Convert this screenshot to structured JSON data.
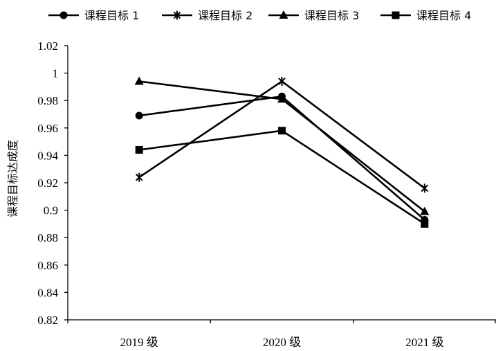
{
  "chart_data": {
    "type": "line",
    "categories": [
      "2019 级",
      "2020 级",
      "2021 级"
    ],
    "ylabel": "课程目标达成度",
    "xlabel": "",
    "ylim": [
      0.82,
      1.02
    ],
    "ytick_labels": [
      "0.82",
      "0.84",
      "0.86",
      "0.88",
      "0.9",
      "0.92",
      "0.94",
      "0.96",
      "0.98",
      "1",
      "1.02"
    ],
    "legend_position": "top",
    "grid": false,
    "series": [
      {
        "name": "课程目标 1",
        "marker": "circle",
        "values": [
          0.969,
          0.983,
          0.893
        ]
      },
      {
        "name": "课程目标 2",
        "marker": "star",
        "values": [
          0.924,
          0.994,
          0.916
        ]
      },
      {
        "name": "课程目标 3",
        "marker": "triangle",
        "values": [
          0.994,
          0.981,
          0.899
        ]
      },
      {
        "name": "课程目标 4",
        "marker": "square",
        "values": [
          0.944,
          0.958,
          0.89
        ]
      }
    ],
    "line_color": "#000000"
  }
}
